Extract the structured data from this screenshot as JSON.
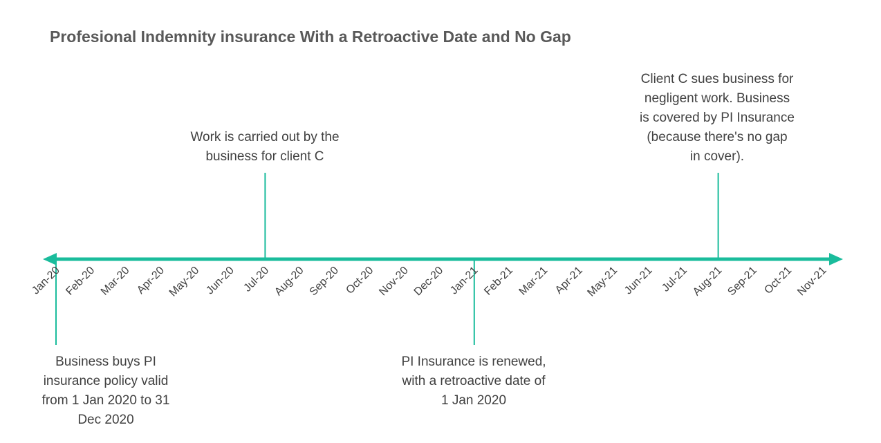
{
  "title": "Profesional Indemnity insurance With a Retroactive Date and No Gap",
  "accent_color": "#1abc9c",
  "months": [
    "Jan-20",
    "Feb-20",
    "Mar-20",
    "Apr-20",
    "May-20",
    "Jun-20",
    "Jul-20",
    "Aug-20",
    "Sep-20",
    "Oct-20",
    "Nov-20",
    "Dec-20",
    "Jan-21",
    "Feb-21",
    "Mar-21",
    "Apr-21",
    "May-21",
    "Jun-21",
    "Jul-21",
    "Aug-21",
    "Sep-21",
    "Oct-21",
    "Nov-21"
  ],
  "events": [
    {
      "month": "Jan-20",
      "position": "below",
      "lines": [
        "Business buys PI",
        "insurance policy valid",
        "from 1 Jan 2020 to 31",
        "Dec 2020"
      ]
    },
    {
      "month": "Jul-20",
      "position": "above",
      "lines": [
        "Work is carried out by the",
        "business for client C"
      ]
    },
    {
      "month": "Jan-21",
      "position": "below",
      "lines": [
        "PI Insurance is renewed,",
        "with a retroactive date of",
        "1 Jan 2020"
      ]
    },
    {
      "month": "Aug-21",
      "position": "above",
      "lines": [
        "Client C sues business for",
        "negligent work. Business",
        "is covered by PI Insurance",
        "(because there's no gap",
        "in cover)."
      ]
    }
  ]
}
